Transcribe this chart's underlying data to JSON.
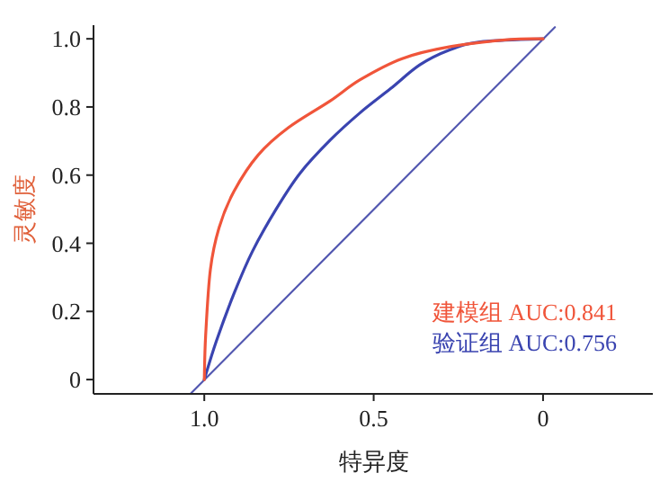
{
  "chart_data": {
    "type": "line",
    "xlabel": "特异度",
    "ylabel": "灵敏度",
    "xlim": [
      1.327,
      -0.324
    ],
    "ylim": [
      -0.042,
      1.04
    ],
    "xticks": [
      {
        "value": 1.0,
        "label": "1.0"
      },
      0.5,
      0
    ],
    "yticks": [
      0,
      {
        "value": 0.2,
        "label": "0.2"
      },
      {
        "value": 0.4,
        "label": "0.4"
      },
      {
        "value": 0.6,
        "label": "0.6"
      },
      {
        "value": 0.8,
        "label": "0.8"
      },
      {
        "value": 1.0,
        "label": "1.0"
      }
    ],
    "grid": false,
    "legend": "bottom right",
    "marker": "none",
    "line_style": "solid",
    "series": [
      {
        "name": "建模组 AUC:0.841",
        "color": "#f0553a",
        "x": [
          1,
          0.996,
          0.982,
          0.956,
          0.912,
          0.841,
          0.752,
          0.628,
          0.54,
          0.416,
          0.274,
          0.097,
          0
        ],
        "values": [
          0,
          0.129,
          0.323,
          0.447,
          0.553,
          0.659,
          0.739,
          0.818,
          0.88,
          0.942,
          0.977,
          0.998,
          1
        ]
      },
      {
        "name": "验证组 AUC:0.756",
        "color": "#3a44b0",
        "x": [
          1,
          0.965,
          0.912,
          0.858,
          0.788,
          0.717,
          0.628,
          0.54,
          0.451,
          0.363,
          0.274,
          0.186,
          0
        ],
        "values": [
          0,
          0.111,
          0.253,
          0.376,
          0.5,
          0.606,
          0.703,
          0.783,
          0.853,
          0.924,
          0.968,
          0.991,
          1
        ]
      },
      {
        "color": "#5257b0",
        "x": [
          1.039,
          -0.035
        ],
        "values": [
          -0.04,
          1.034
        ]
      }
    ]
  }
}
